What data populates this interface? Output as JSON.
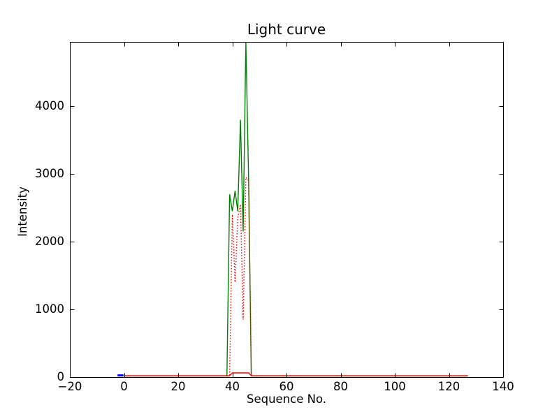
{
  "figure": {
    "background_color": "#ffffff",
    "axes_color": "#000000",
    "text_color": "#000000"
  },
  "chart_data": {
    "type": "line",
    "title": "Light curve",
    "xlabel": "Sequence No.",
    "ylabel": "Intensity",
    "xlim": [
      -20,
      140
    ],
    "ylim": [
      0,
      4950
    ],
    "x_ticks": [
      -20,
      0,
      20,
      40,
      60,
      80,
      100,
      120,
      140
    ],
    "x_tick_labels": [
      "−20",
      "0",
      "20",
      "40",
      "60",
      "80",
      "100",
      "120",
      "140"
    ],
    "y_ticks": [
      0,
      1000,
      2000,
      3000,
      4000
    ],
    "y_tick_labels": [
      "0",
      "1000",
      "2000",
      "3000",
      "4000"
    ],
    "grid": false,
    "legend": false,
    "series": [
      {
        "name": "blue-marker-segment",
        "color": "#0000ff",
        "line_style": "solid",
        "line_width": 3,
        "points": [
          [
            -2.4,
            25
          ],
          [
            -0.2,
            25
          ]
        ]
      },
      {
        "name": "green-light-curve",
        "color": "#008000",
        "line_style": "solid",
        "line_width": 1.4,
        "points": [
          [
            0,
            18
          ],
          [
            38,
            18
          ],
          [
            39,
            2700
          ],
          [
            40,
            2450
          ],
          [
            41,
            2750
          ],
          [
            42,
            2450
          ],
          [
            43,
            3800
          ],
          [
            44,
            2150
          ],
          [
            45,
            4950
          ],
          [
            46,
            2950
          ],
          [
            47,
            18
          ],
          [
            127,
            18
          ]
        ]
      },
      {
        "name": "red-dotted-curve",
        "color": "#ff0000",
        "line_style": "dotted",
        "line_width": 1.4,
        "points": [
          [
            0,
            18
          ],
          [
            39,
            18
          ],
          [
            40,
            2400
          ],
          [
            41,
            1400
          ],
          [
            42,
            2350
          ],
          [
            43,
            2550
          ],
          [
            44,
            850
          ],
          [
            45,
            2950
          ],
          [
            46,
            2900
          ],
          [
            47,
            18
          ],
          [
            127,
            18
          ]
        ]
      },
      {
        "name": "red-solid-baseline",
        "color": "#ff0000",
        "line_style": "solid",
        "line_width": 1.4,
        "points": [
          [
            0,
            20
          ],
          [
            39,
            20
          ],
          [
            40,
            62
          ],
          [
            46,
            62
          ],
          [
            47,
            20
          ],
          [
            127,
            20
          ]
        ]
      }
    ]
  }
}
